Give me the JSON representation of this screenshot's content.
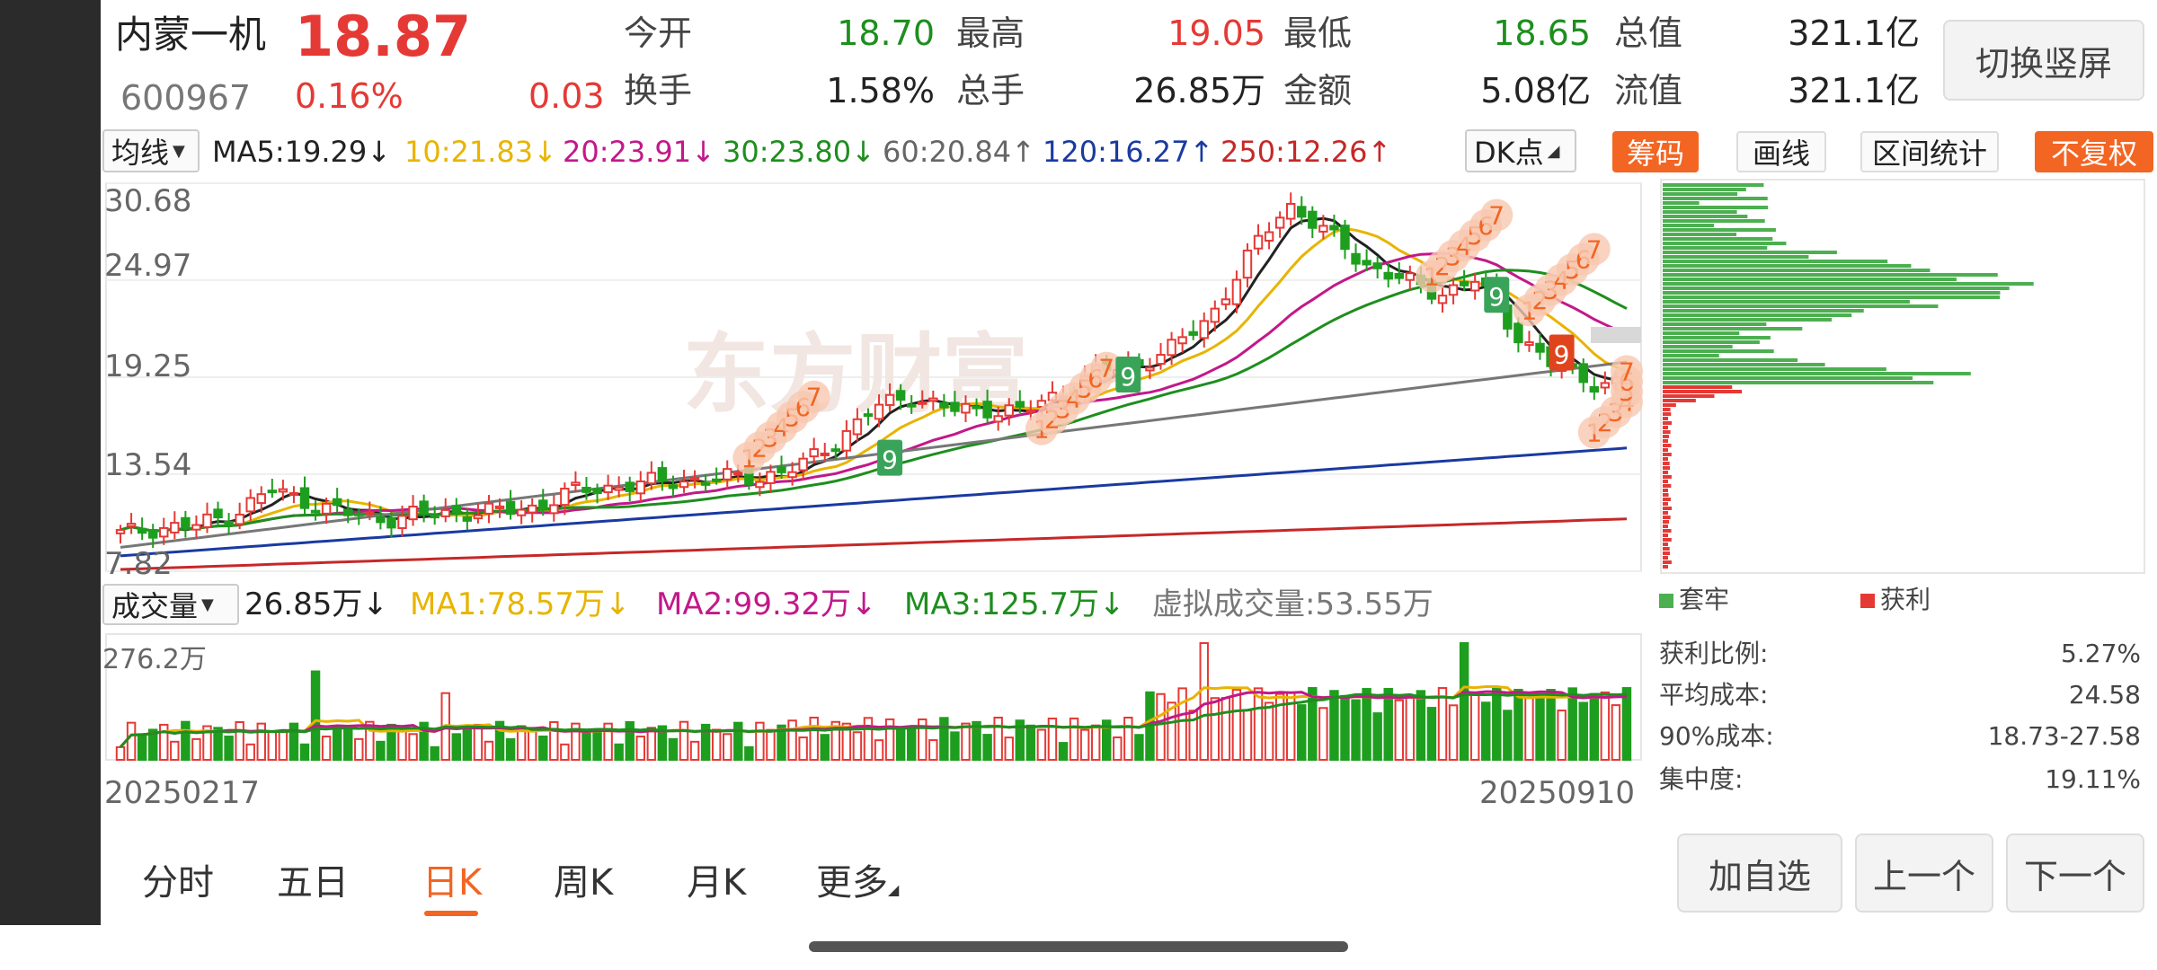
{
  "header": {
    "name": "内蒙一机",
    "price": "18.87",
    "code": "600967",
    "change_pct": "0.16%",
    "change": "0.03",
    "stats": [
      {
        "label": "今开",
        "value": "18.70",
        "color": "#1e8e1e"
      },
      {
        "label": "最高",
        "value": "19.05",
        "color": "#e53935"
      },
      {
        "label": "最低",
        "value": "18.65",
        "color": "#1e8e1e"
      },
      {
        "label": "总值",
        "value": "321.1亿",
        "color": "#222222"
      },
      {
        "label": "换手",
        "value": "1.58%",
        "color": "#222222"
      },
      {
        "label": "总手",
        "value": "26.85万",
        "color": "#222222"
      },
      {
        "label": "金额",
        "value": "5.08亿",
        "color": "#222222"
      },
      {
        "label": "流值",
        "value": "321.1亿",
        "color": "#222222"
      }
    ],
    "switch_label": "切换竖屏"
  },
  "ma_bar": {
    "selector": "均线",
    "items": [
      {
        "text": "MA5:19.29↓",
        "color": "#222222"
      },
      {
        "text": "10:21.83↓",
        "color": "#e8b400"
      },
      {
        "text": "20:23.91↓",
        "color": "#c2188a"
      },
      {
        "text": "30:23.80↓",
        "color": "#1e8e1e"
      },
      {
        "text": "60:20.84↑",
        "color": "#666666"
      },
      {
        "text": "120:16.27↑",
        "color": "#1a3aa0"
      },
      {
        "text": "250:12.26↑",
        "color": "#c62828"
      }
    ],
    "dk_label": "DK点",
    "chip_label": "筹码",
    "draw_label": "画线",
    "range_label": "区间统计",
    "adjust_label": "不复权"
  },
  "price_axis": [
    "30.68",
    "24.97",
    "19.25",
    "13.54",
    "7.82"
  ],
  "watermark": "东方财富",
  "volume_bar": {
    "selector": "成交量",
    "value": "26.85万↓",
    "ma1": "MA1:78.57万↓",
    "ma2": "MA2:99.32万↓",
    "ma3": "MA3:125.7万↓",
    "virtual": "虚拟成交量:53.55万",
    "axis_top": "276.2万"
  },
  "dates": {
    "start": "20250217",
    "end": "20250910"
  },
  "chip_panel": {
    "legend_trapped": "套牢",
    "legend_profit": "获利",
    "trapped_color": "#4caf50",
    "profit_color": "#e53935",
    "rows": [
      {
        "label": "获利比例:",
        "value": "5.27%"
      },
      {
        "label": "平均成本:",
        "value": "24.58"
      },
      {
        "label": "90%成本:",
        "value": "18.73-27.58"
      },
      {
        "label": "集中度:",
        "value": "19.11%"
      }
    ]
  },
  "tabs": [
    "分时",
    "五日",
    "日K",
    "周K",
    "月K",
    "更多"
  ],
  "active_tab": "日K",
  "actions": [
    "加自选",
    "上一个",
    "下一个"
  ],
  "chart_data": {
    "type": "candlestick",
    "x_range": [
      "20250217",
      "20250910"
    ],
    "ylim": [
      7.82,
      30.68
    ],
    "y_ticks": [
      7.82,
      13.54,
      19.25,
      24.97,
      30.68
    ],
    "close_path_trend": [
      10.0,
      10.4,
      10.5,
      11.2,
      12.6,
      11.9,
      11.2,
      10.9,
      11.2,
      11.3,
      11.3,
      11.6,
      12.5,
      12.8,
      13.0,
      13.2,
      13.3,
      13.4,
      13.9,
      15.5,
      17.4,
      18.2,
      17.3,
      17.4,
      17.2,
      18.4,
      19.6,
      20.0,
      21.0,
      23.0,
      26.5,
      29.5,
      27.8,
      26.0,
      25.0,
      24.2,
      25.0,
      22.0,
      20.0,
      19.0,
      18.87
    ],
    "ma_latest": {
      "MA5": 19.29,
      "MA10": 21.83,
      "MA20": 23.91,
      "MA30": 23.8,
      "MA60": 20.84,
      "MA120": 16.27,
      "MA250": 12.26
    },
    "volume_axis_max_wan": 276.2
  }
}
